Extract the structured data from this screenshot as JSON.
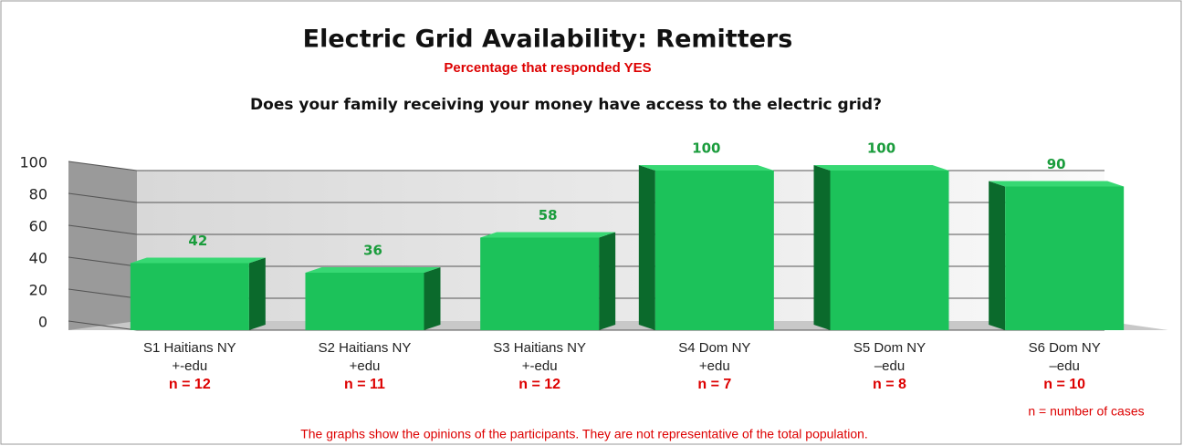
{
  "chart_data": {
    "type": "bar3d",
    "title": "Electric Grid Availability: Remitters",
    "subtitle": "Percentage that responded YES",
    "question": "Does your family receiving your money have access to the electric grid?",
    "categories": [
      [
        "S1 Haitians NY",
        "+-edu"
      ],
      [
        "S2 Haitians NY",
        "+edu"
      ],
      [
        "S3 Haitians NY",
        "+-edu"
      ],
      [
        "S4 Dom NY",
        "+edu"
      ],
      [
        "S5 Dom NY",
        "–edu"
      ],
      [
        "S6 Dom NY",
        "–edu"
      ]
    ],
    "sample_sizes": [
      "n = 12",
      "n = 11",
      "n = 12",
      "n = 7",
      "n = 8",
      "n = 10"
    ],
    "values": [
      42,
      36,
      58,
      100,
      100,
      90
    ],
    "color": "#1cc25a",
    "ylim": [
      0,
      100
    ],
    "yticks": [
      0,
      20,
      40,
      60,
      80,
      100
    ],
    "grid": true,
    "legend_note": "n = number of cases",
    "footnote": "The graphs show the opinions of the participants.  They are not representative of the total population."
  }
}
